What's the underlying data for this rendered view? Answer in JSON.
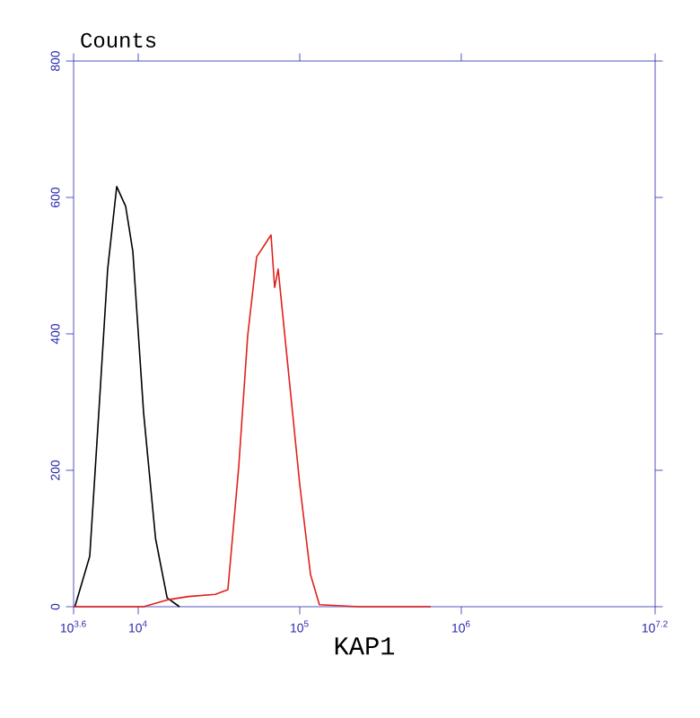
{
  "chart_data": {
    "type": "line",
    "title": "Counts",
    "xlabel": "KAP1",
    "log": "x",
    "xlim": [
      3981,
      15848932
    ],
    "ylim": [
      0,
      800
    ],
    "xticks": [
      {
        "value": 3981,
        "label": "10$^{3.6}$"
      },
      {
        "value": 10000,
        "label": "10$^{4}$"
      },
      {
        "value": 100000,
        "label": "10$^{5}$"
      },
      {
        "value": 1000000,
        "label": "10$^{6}$"
      },
      {
        "value": 15848932,
        "label": "10$^{7.2}$"
      }
    ],
    "yticks": [
      0,
      200,
      400,
      600,
      800
    ],
    "grid": false,
    "marker": "none",
    "line_style": "solid",
    "series": [
      {
        "color": "#000000",
        "x": [
          4055,
          5012,
          5700,
          6470,
          7360,
          8360,
          9260,
          10800,
          12800,
          15100,
          18000
        ],
        "values": [
          0,
          74,
          284,
          495,
          616,
          587,
          521,
          284,
          100,
          13,
          0
        ]
      },
      {
        "color": "#e0201c",
        "x": [
          3981,
          10800,
          15100,
          20500,
          30000,
          35900,
          41900,
          47600,
          54100,
          60000,
          66400,
          69900,
          73500,
          83600,
          100000,
          116600,
          132300,
          232600,
          647000
        ],
        "values": [
          0,
          0,
          10,
          15,
          18,
          25,
          205,
          397,
          513,
          529,
          545,
          468,
          495,
          363,
          179,
          47,
          3,
          0,
          0
        ]
      }
    ]
  }
}
